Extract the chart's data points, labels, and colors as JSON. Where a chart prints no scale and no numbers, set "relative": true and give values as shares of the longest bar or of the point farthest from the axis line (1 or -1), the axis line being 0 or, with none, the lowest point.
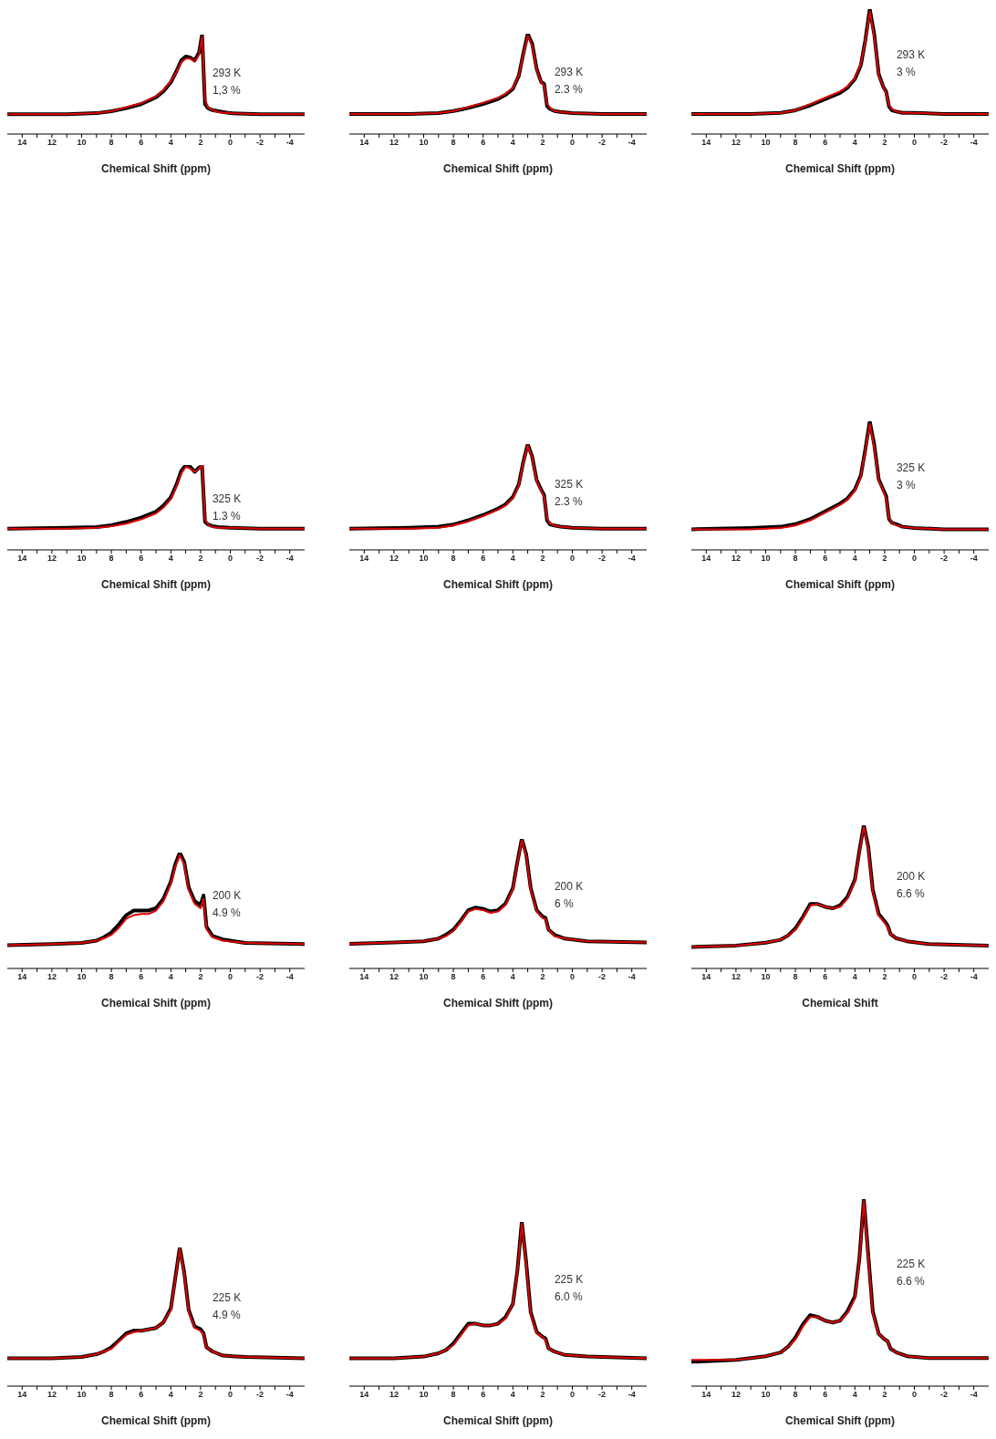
{
  "chart_data": [
    {
      "type": "line",
      "relative": true,
      "tick_labels": "x",
      "xlabel": "Chemical Shift (ppm)",
      "annotations": [
        "293 K",
        "1,3 %"
      ],
      "xlim": [
        15,
        -5
      ],
      "xticks": [
        14,
        {
          "value": 13,
          "label": null
        },
        12,
        {
          "value": 11,
          "label": null
        },
        10,
        {
          "value": 9,
          "label": null
        },
        8,
        {
          "value": 7,
          "label": null
        },
        6,
        {
          "value": 5,
          "label": null
        },
        4,
        {
          "value": 3,
          "label": null
        },
        2,
        {
          "value": 1,
          "label": null
        },
        0,
        {
          "value": -1,
          "label": null
        },
        -2,
        {
          "value": -3,
          "label": null
        },
        -4
      ],
      "x": [
        15,
        11,
        9,
        8,
        7,
        6,
        5,
        4.5,
        4,
        3.6,
        3.3,
        3.0,
        2.7,
        2.4,
        2.1,
        1.9,
        1.7,
        1.5,
        1.2,
        0.8,
        0,
        -2,
        -5
      ],
      "series": [
        {
          "color": "#000000",
          "values": [
            0.2,
            0.2,
            0.21,
            0.23,
            0.26,
            0.3,
            0.37,
            0.43,
            0.52,
            0.64,
            0.74,
            0.78,
            0.77,
            0.74,
            0.82,
            1.0,
            0.3,
            0.26,
            0.24,
            0.23,
            0.21,
            0.2,
            0.2
          ]
        },
        {
          "color": "#e00000",
          "values": [
            0.2,
            0.2,
            0.21,
            0.23,
            0.27,
            0.31,
            0.38,
            0.44,
            0.53,
            0.63,
            0.72,
            0.76,
            0.76,
            0.73,
            0.8,
            0.98,
            0.35,
            0.27,
            0.24,
            0.22,
            0.21,
            0.2,
            0.2
          ]
        }
      ]
    },
    {
      "type": "line",
      "relative": true,
      "tick_labels": "x",
      "xlabel": "Chemical Shift (ppm)",
      "annotations": [
        "293 K",
        "2.3 %"
      ],
      "xlim": [
        15,
        -5
      ],
      "xticks": [
        14,
        {
          "value": 13,
          "label": null
        },
        12,
        {
          "value": 11,
          "label": null
        },
        10,
        {
          "value": 9,
          "label": null
        },
        8,
        {
          "value": 7,
          "label": null
        },
        6,
        {
          "value": 5,
          "label": null
        },
        4,
        {
          "value": 3,
          "label": null
        },
        2,
        {
          "value": 1,
          "label": null
        },
        0,
        {
          "value": -1,
          "label": null
        },
        -2,
        {
          "value": -3,
          "label": null
        },
        -4
      ],
      "x": [
        15,
        11,
        9,
        8,
        7,
        6,
        5,
        4.5,
        4,
        3.6,
        3.3,
        3.0,
        2.7,
        2.4,
        2.1,
        1.9,
        1.7,
        1.5,
        1.2,
        0.8,
        0,
        -2,
        -5
      ],
      "series": [
        {
          "color": "#000000",
          "values": [
            0.2,
            0.2,
            0.21,
            0.23,
            0.26,
            0.3,
            0.35,
            0.39,
            0.45,
            0.58,
            0.8,
            1.0,
            0.9,
            0.65,
            0.52,
            0.5,
            0.28,
            0.25,
            0.23,
            0.22,
            0.21,
            0.2,
            0.2
          ]
        },
        {
          "color": "#e00000",
          "values": [
            0.2,
            0.2,
            0.21,
            0.23,
            0.27,
            0.31,
            0.36,
            0.4,
            0.46,
            0.58,
            0.79,
            0.98,
            0.88,
            0.64,
            0.52,
            0.48,
            0.3,
            0.26,
            0.23,
            0.22,
            0.21,
            0.2,
            0.2
          ]
        }
      ]
    },
    {
      "type": "line",
      "relative": true,
      "tick_labels": "x",
      "xlabel": "Chemical Shift (ppm)",
      "annotations": [
        "293 K",
        "3 %"
      ],
      "xlim": [
        15,
        -5
      ],
      "xticks": [
        14,
        {
          "value": 13,
          "label": null
        },
        12,
        {
          "value": 11,
          "label": null
        },
        10,
        {
          "value": 9,
          "label": null
        },
        8,
        {
          "value": 7,
          "label": null
        },
        6,
        {
          "value": 5,
          "label": null
        },
        4,
        {
          "value": 3,
          "label": null
        },
        2,
        {
          "value": 1,
          "label": null
        },
        0,
        {
          "value": -1,
          "label": null
        },
        -2,
        {
          "value": -3,
          "label": null
        },
        -4
      ],
      "x": [
        15,
        11,
        9,
        8,
        7,
        6,
        5,
        4.5,
        4,
        3.6,
        3.3,
        3.0,
        2.7,
        2.4,
        2.1,
        1.9,
        1.7,
        1.5,
        1.2,
        0.8,
        0,
        -2,
        -5
      ],
      "series": [
        {
          "color": "#000000",
          "values": [
            0.16,
            0.16,
            0.17,
            0.19,
            0.23,
            0.28,
            0.33,
            0.37,
            0.44,
            0.55,
            0.75,
            1.0,
            0.8,
            0.48,
            0.38,
            0.34,
            0.22,
            0.19,
            0.18,
            0.17,
            0.17,
            0.16,
            0.16
          ]
        },
        {
          "color": "#e00000",
          "values": [
            0.16,
            0.16,
            0.17,
            0.19,
            0.24,
            0.29,
            0.34,
            0.38,
            0.45,
            0.56,
            0.74,
            0.98,
            0.78,
            0.47,
            0.38,
            0.33,
            0.23,
            0.2,
            0.18,
            0.17,
            0.17,
            0.16,
            0.16
          ]
        }
      ]
    },
    {
      "type": "line",
      "relative": true,
      "tick_labels": "x",
      "xlabel": "Chemical Shift (ppm)",
      "annotations": [
        "325 K",
        "1.3 %"
      ],
      "xlim": [
        15,
        -5
      ],
      "xticks": [
        14,
        {
          "value": 13,
          "label": null
        },
        12,
        {
          "value": 11,
          "label": null
        },
        10,
        {
          "value": 9,
          "label": null
        },
        8,
        {
          "value": 7,
          "label": null
        },
        6,
        {
          "value": 5,
          "label": null
        },
        4,
        {
          "value": 3,
          "label": null
        },
        2,
        {
          "value": 1,
          "label": null
        },
        0,
        {
          "value": -1,
          "label": null
        },
        -2,
        {
          "value": -3,
          "label": null
        },
        -4
      ],
      "x": [
        15,
        11,
        9,
        8,
        7,
        6,
        5,
        4.5,
        4,
        3.6,
        3.3,
        3.0,
        2.7,
        2.4,
        2.1,
        1.9,
        1.7,
        1.5,
        1.2,
        0.8,
        0,
        -2,
        -5
      ],
      "series": [
        {
          "color": "#000000",
          "values": [
            0.25,
            0.26,
            0.27,
            0.29,
            0.33,
            0.38,
            0.45,
            0.52,
            0.62,
            0.78,
            0.93,
            1.0,
            0.98,
            0.92,
            0.97,
            0.99,
            0.33,
            0.3,
            0.28,
            0.27,
            0.26,
            0.25,
            0.25
          ]
        },
        {
          "color": "#e00000",
          "values": [
            0.25,
            0.25,
            0.26,
            0.28,
            0.31,
            0.36,
            0.43,
            0.5,
            0.6,
            0.76,
            0.9,
            0.98,
            0.96,
            0.92,
            0.96,
            1.0,
            0.36,
            0.3,
            0.27,
            0.26,
            0.26,
            0.25,
            0.25
          ]
        }
      ]
    },
    {
      "type": "line",
      "relative": true,
      "tick_labels": "x",
      "xlabel": "Chemical Shift (ppm)",
      "annotations": [
        "325 K",
        "2.3 %"
      ],
      "xlim": [
        15,
        -5
      ],
      "xticks": [
        14,
        {
          "value": 13,
          "label": null
        },
        12,
        {
          "value": 11,
          "label": null
        },
        10,
        {
          "value": 9,
          "label": null
        },
        8,
        {
          "value": 7,
          "label": null
        },
        6,
        {
          "value": 5,
          "label": null
        },
        4,
        {
          "value": 3,
          "label": null
        },
        2,
        {
          "value": 1,
          "label": null
        },
        0,
        {
          "value": -1,
          "label": null
        },
        -2,
        {
          "value": -3,
          "label": null
        },
        -4
      ],
      "x": [
        15,
        11,
        9,
        8,
        7,
        6,
        5,
        4.5,
        4,
        3.6,
        3.3,
        3.0,
        2.7,
        2.4,
        2.1,
        1.9,
        1.7,
        1.5,
        1.2,
        0.8,
        0,
        -2,
        -5
      ],
      "series": [
        {
          "color": "#000000",
          "values": [
            0.2,
            0.21,
            0.22,
            0.24,
            0.28,
            0.33,
            0.39,
            0.43,
            0.5,
            0.62,
            0.83,
            1.0,
            0.88,
            0.66,
            0.57,
            0.52,
            0.28,
            0.24,
            0.23,
            0.22,
            0.21,
            0.2,
            0.2
          ]
        },
        {
          "color": "#e00000",
          "values": [
            0.2,
            0.2,
            0.21,
            0.23,
            0.27,
            0.32,
            0.38,
            0.42,
            0.49,
            0.61,
            0.82,
            0.99,
            0.87,
            0.65,
            0.56,
            0.5,
            0.3,
            0.25,
            0.23,
            0.22,
            0.21,
            0.2,
            0.2
          ]
        }
      ]
    },
    {
      "type": "line",
      "relative": true,
      "tick_labels": "x",
      "xlabel": "Chemical Shift (ppm)",
      "annotations": [
        "325 K",
        "3 %"
      ],
      "xlim": [
        15,
        -5
      ],
      "xticks": [
        14,
        {
          "value": 13,
          "label": null
        },
        12,
        {
          "value": 11,
          "label": null
        },
        10,
        {
          "value": 9,
          "label": null
        },
        8,
        {
          "value": 7,
          "label": null
        },
        6,
        {
          "value": 5,
          "label": null
        },
        4,
        {
          "value": 3,
          "label": null
        },
        2,
        {
          "value": 1,
          "label": null
        },
        0,
        {
          "value": -1,
          "label": null
        },
        -2,
        {
          "value": -3,
          "label": null
        },
        -4
      ],
      "x": [
        15,
        11,
        9,
        8,
        7,
        6,
        5,
        4.5,
        4,
        3.6,
        3.3,
        3.0,
        2.7,
        2.4,
        2.1,
        1.9,
        1.7,
        1.5,
        1.2,
        0.8,
        0,
        -2,
        -5
      ],
      "series": [
        {
          "color": "#000000",
          "values": [
            0.16,
            0.17,
            0.18,
            0.2,
            0.24,
            0.3,
            0.36,
            0.4,
            0.47,
            0.58,
            0.78,
            1.0,
            0.82,
            0.55,
            0.47,
            0.42,
            0.24,
            0.21,
            0.2,
            0.18,
            0.17,
            0.16,
            0.16
          ]
        },
        {
          "color": "#e00000",
          "values": [
            0.16,
            0.16,
            0.17,
            0.19,
            0.23,
            0.29,
            0.35,
            0.39,
            0.46,
            0.57,
            0.77,
            0.98,
            0.8,
            0.54,
            0.46,
            0.4,
            0.25,
            0.21,
            0.19,
            0.18,
            0.17,
            0.16,
            0.16
          ]
        }
      ]
    },
    {
      "type": "line",
      "relative": true,
      "tick_labels": "x",
      "xlabel": "Chemical Shift (ppm)",
      "annotations": [
        "200 K",
        "4.9 %"
      ],
      "xlim": [
        15,
        -5
      ],
      "xticks": [
        14,
        {
          "value": 13,
          "label": null
        },
        12,
        {
          "value": 11,
          "label": null
        },
        10,
        {
          "value": 9,
          "label": null
        },
        8,
        {
          "value": 7,
          "label": null
        },
        6,
        {
          "value": 5,
          "label": null
        },
        4,
        {
          "value": 3,
          "label": null
        },
        2,
        {
          "value": 1,
          "label": null
        },
        0,
        {
          "value": -1,
          "label": null
        },
        -2,
        {
          "value": -3,
          "label": null
        },
        -4
      ],
      "x": [
        15,
        12,
        10,
        9,
        8.5,
        8,
        7.5,
        7,
        6.5,
        6,
        5.5,
        5,
        4.5,
        4,
        3.7,
        3.4,
        3.1,
        2.8,
        2.4,
        2.0,
        1.8,
        1.6,
        1.2,
        0.5,
        -1,
        -5
      ],
      "series": [
        {
          "color": "#000000",
          "values": [
            0.2,
            0.21,
            0.22,
            0.24,
            0.27,
            0.31,
            0.38,
            0.46,
            0.5,
            0.5,
            0.5,
            0.52,
            0.6,
            0.75,
            0.9,
            1.0,
            0.92,
            0.7,
            0.58,
            0.55,
            0.63,
            0.36,
            0.28,
            0.25,
            0.22,
            0.21
          ]
        },
        {
          "color": "#e00000",
          "values": [
            0.2,
            0.21,
            0.22,
            0.24,
            0.26,
            0.29,
            0.35,
            0.43,
            0.46,
            0.47,
            0.47,
            0.5,
            0.58,
            0.73,
            0.88,
            0.98,
            0.9,
            0.68,
            0.56,
            0.52,
            0.6,
            0.34,
            0.27,
            0.24,
            0.22,
            0.21
          ]
        }
      ]
    },
    {
      "type": "line",
      "relative": true,
      "tick_labels": "x",
      "xlabel": "Chemical Shift (ppm)",
      "annotations": [
        "200 K",
        "6 %"
      ],
      "xlim": [
        15,
        -5
      ],
      "xticks": [
        14,
        {
          "value": 13,
          "label": null
        },
        12,
        {
          "value": 11,
          "label": null
        },
        10,
        {
          "value": 9,
          "label": null
        },
        8,
        {
          "value": 7,
          "label": null
        },
        6,
        {
          "value": 5,
          "label": null
        },
        4,
        {
          "value": 3,
          "label": null
        },
        2,
        {
          "value": 1,
          "label": null
        },
        0,
        {
          "value": -1,
          "label": null
        },
        -2,
        {
          "value": -3,
          "label": null
        },
        -4
      ],
      "x": [
        15,
        12,
        10,
        9,
        8.5,
        8,
        7.5,
        7,
        6.5,
        6,
        5.5,
        5,
        4.5,
        4,
        3.7,
        3.4,
        3.1,
        2.8,
        2.4,
        2.0,
        1.8,
        1.6,
        1.2,
        0.5,
        -1,
        -5
      ],
      "series": [
        {
          "color": "#000000",
          "values": [
            0.19,
            0.2,
            0.21,
            0.23,
            0.26,
            0.3,
            0.37,
            0.45,
            0.47,
            0.46,
            0.44,
            0.45,
            0.5,
            0.62,
            0.82,
            1.0,
            0.88,
            0.62,
            0.45,
            0.4,
            0.39,
            0.3,
            0.26,
            0.23,
            0.21,
            0.2
          ]
        },
        {
          "color": "#e00000",
          "values": [
            0.19,
            0.2,
            0.21,
            0.23,
            0.25,
            0.29,
            0.36,
            0.44,
            0.46,
            0.45,
            0.43,
            0.44,
            0.49,
            0.61,
            0.81,
            0.99,
            0.87,
            0.61,
            0.44,
            0.39,
            0.38,
            0.3,
            0.25,
            0.23,
            0.21,
            0.2
          ]
        }
      ]
    },
    {
      "type": "line",
      "relative": true,
      "tick_labels": "x",
      "xlabel": "Chemical Shift",
      "annotations": [
        "200 K",
        "6.6 %"
      ],
      "xlim": [
        15,
        -5
      ],
      "xticks": [
        14,
        {
          "value": 13,
          "label": null
        },
        12,
        {
          "value": 11,
          "label": null
        },
        10,
        {
          "value": 9,
          "label": null
        },
        8,
        {
          "value": 7,
          "label": null
        },
        6,
        {
          "value": 5,
          "label": null
        },
        4,
        {
          "value": 3,
          "label": null
        },
        2,
        {
          "value": 1,
          "label": null
        },
        0,
        {
          "value": -1,
          "label": null
        },
        -2,
        {
          "value": -3,
          "label": null
        },
        -4
      ],
      "x": [
        15,
        12,
        10,
        9,
        8.5,
        8,
        7.5,
        7,
        6.5,
        6,
        5.5,
        5,
        4.5,
        4,
        3.7,
        3.4,
        3.1,
        2.8,
        2.4,
        2.0,
        1.8,
        1.6,
        1.2,
        0.5,
        -1,
        -5
      ],
      "series": [
        {
          "color": "#000000",
          "values": [
            0.15,
            0.16,
            0.18,
            0.2,
            0.23,
            0.28,
            0.36,
            0.45,
            0.45,
            0.43,
            0.42,
            0.44,
            0.5,
            0.62,
            0.82,
            1.0,
            0.85,
            0.55,
            0.38,
            0.33,
            0.3,
            0.24,
            0.21,
            0.19,
            0.17,
            0.16
          ]
        },
        {
          "color": "#e00000",
          "values": [
            0.15,
            0.16,
            0.18,
            0.2,
            0.23,
            0.27,
            0.35,
            0.44,
            0.45,
            0.43,
            0.42,
            0.43,
            0.49,
            0.61,
            0.81,
            0.99,
            0.84,
            0.54,
            0.37,
            0.32,
            0.29,
            0.24,
            0.21,
            0.19,
            0.17,
            0.16
          ]
        }
      ]
    },
    {
      "type": "line",
      "relative": true,
      "tick_labels": "x",
      "xlabel": "Chemical Shift (ppm)",
      "annotations": [
        "225 K",
        "4.9 %"
      ],
      "xlim": [
        15,
        -5
      ],
      "xticks": [
        14,
        {
          "value": 13,
          "label": null
        },
        12,
        {
          "value": 11,
          "label": null
        },
        10,
        {
          "value": 9,
          "label": null
        },
        8,
        {
          "value": 7,
          "label": null
        },
        6,
        {
          "value": 5,
          "label": null
        },
        4,
        {
          "value": 3,
          "label": null
        },
        2,
        {
          "value": 1,
          "label": null
        },
        0,
        {
          "value": -1,
          "label": null
        },
        -2,
        {
          "value": -3,
          "label": null
        },
        -4
      ],
      "x": [
        15,
        12,
        10,
        9,
        8.5,
        8,
        7.5,
        7,
        6.5,
        6,
        5.5,
        5,
        4.5,
        4,
        3.7,
        3.4,
        3.1,
        2.8,
        2.4,
        2.0,
        1.8,
        1.6,
        1.2,
        0.5,
        -1,
        -5
      ],
      "series": [
        {
          "color": "#000000",
          "values": [
            0.2,
            0.2,
            0.21,
            0.23,
            0.25,
            0.28,
            0.33,
            0.38,
            0.4,
            0.4,
            0.41,
            0.42,
            0.46,
            0.56,
            0.78,
            1.0,
            0.82,
            0.55,
            0.43,
            0.41,
            0.38,
            0.28,
            0.25,
            0.22,
            0.21,
            0.2
          ]
        },
        {
          "color": "#e00000",
          "values": [
            0.2,
            0.2,
            0.21,
            0.23,
            0.25,
            0.27,
            0.32,
            0.37,
            0.39,
            0.4,
            0.41,
            0.42,
            0.46,
            0.55,
            0.77,
            0.99,
            0.81,
            0.54,
            0.42,
            0.4,
            0.37,
            0.28,
            0.25,
            0.22,
            0.21,
            0.2
          ]
        }
      ]
    },
    {
      "type": "line",
      "relative": true,
      "tick_labels": "x",
      "xlabel": "Chemical Shift (ppm)",
      "annotations": [
        "225 K",
        "6.0 %"
      ],
      "xlim": [
        15,
        -5
      ],
      "xticks": [
        14,
        {
          "value": 13,
          "label": null
        },
        12,
        {
          "value": 11,
          "label": null
        },
        10,
        {
          "value": 9,
          "label": null
        },
        8,
        {
          "value": 7,
          "label": null
        },
        6,
        {
          "value": 5,
          "label": null
        },
        4,
        {
          "value": 3,
          "label": null
        },
        2,
        {
          "value": 1,
          "label": null
        },
        0,
        {
          "value": -1,
          "label": null
        },
        -2,
        {
          "value": -3,
          "label": null
        },
        -4
      ],
      "x": [
        15,
        12,
        10,
        9,
        8.5,
        8,
        7.5,
        7,
        6.5,
        6,
        5.5,
        5,
        4.5,
        4,
        3.7,
        3.4,
        3.1,
        2.8,
        2.4,
        2.0,
        1.8,
        1.6,
        1.2,
        0.5,
        -1,
        -5
      ],
      "series": [
        {
          "color": "#000000",
          "values": [
            0.17,
            0.17,
            0.18,
            0.2,
            0.22,
            0.26,
            0.32,
            0.38,
            0.38,
            0.37,
            0.37,
            0.38,
            0.42,
            0.5,
            0.7,
            1.0,
            0.75,
            0.45,
            0.33,
            0.3,
            0.29,
            0.23,
            0.21,
            0.19,
            0.18,
            0.17
          ]
        },
        {
          "color": "#e00000",
          "values": [
            0.17,
            0.17,
            0.18,
            0.2,
            0.22,
            0.25,
            0.31,
            0.37,
            0.38,
            0.37,
            0.37,
            0.38,
            0.41,
            0.5,
            0.69,
            0.99,
            0.74,
            0.44,
            0.32,
            0.3,
            0.28,
            0.23,
            0.21,
            0.19,
            0.18,
            0.17
          ]
        }
      ]
    },
    {
      "type": "line",
      "relative": true,
      "tick_labels": "x",
      "xlabel": "Chemical Shift (ppm)",
      "annotations": [
        "225 K",
        "6.6 %"
      ],
      "xlim": [
        15,
        -5
      ],
      "xticks": [
        14,
        {
          "value": 13,
          "label": null
        },
        12,
        {
          "value": 11,
          "label": null
        },
        10,
        {
          "value": 9,
          "label": null
        },
        8,
        {
          "value": 7,
          "label": null
        },
        6,
        {
          "value": 5,
          "label": null
        },
        4,
        {
          "value": 3,
          "label": null
        },
        2,
        {
          "value": 1,
          "label": null
        },
        0,
        {
          "value": -1,
          "label": null
        },
        -2,
        {
          "value": -3,
          "label": null
        },
        -4
      ],
      "x": [
        15,
        12,
        10,
        9,
        8.5,
        8,
        7.5,
        7,
        6.5,
        6,
        5.5,
        5,
        4.5,
        4,
        3.7,
        3.4,
        3.1,
        2.8,
        2.4,
        2.0,
        1.8,
        1.6,
        1.2,
        0.5,
        -1,
        -5
      ],
      "series": [
        {
          "color": "#000000",
          "values": [
            0.13,
            0.14,
            0.16,
            0.18,
            0.21,
            0.26,
            0.33,
            0.38,
            0.37,
            0.35,
            0.34,
            0.35,
            0.4,
            0.48,
            0.68,
            1.0,
            0.7,
            0.4,
            0.28,
            0.25,
            0.24,
            0.2,
            0.18,
            0.16,
            0.15,
            0.15
          ]
        },
        {
          "color": "#e00000",
          "values": [
            0.14,
            0.14,
            0.16,
            0.18,
            0.21,
            0.25,
            0.32,
            0.37,
            0.37,
            0.35,
            0.34,
            0.35,
            0.39,
            0.47,
            0.67,
            0.99,
            0.69,
            0.39,
            0.28,
            0.25,
            0.24,
            0.2,
            0.18,
            0.16,
            0.15,
            0.15
          ]
        }
      ]
    }
  ]
}
